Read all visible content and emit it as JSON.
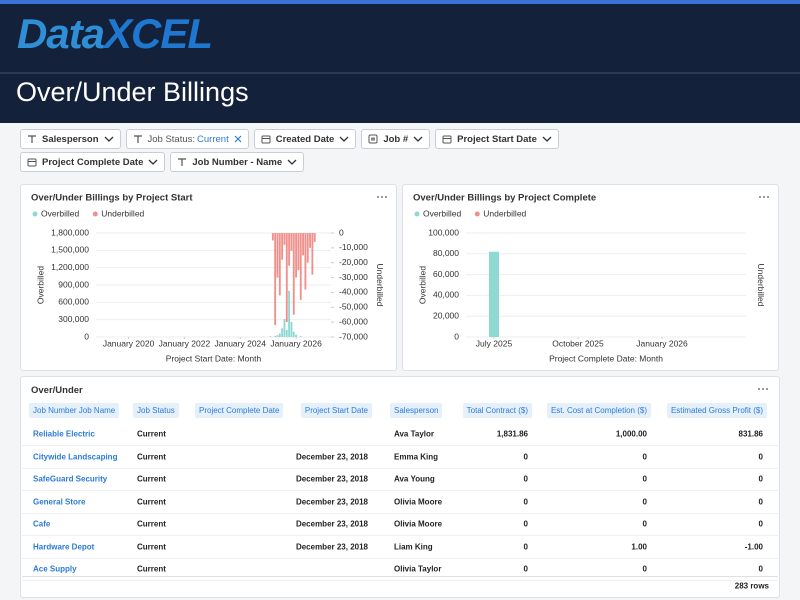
{
  "header": {
    "logo_data": "Data",
    "logo_xcel": "XCEL",
    "title": "Over/Under Billings"
  },
  "filters": [
    {
      "icon": "text",
      "label": "Salesperson"
    },
    {
      "icon": "text",
      "label": "Job Status:",
      "value": "Current"
    },
    {
      "icon": "date",
      "label": "Created Date"
    },
    {
      "icon": "number",
      "label": "Job #"
    },
    {
      "icon": "date",
      "label": "Project Start Date"
    },
    {
      "icon": "date",
      "label": "Project Complete Date"
    },
    {
      "icon": "text",
      "label": "Job Number - Name"
    }
  ],
  "chart_data": [
    {
      "type": "bar",
      "title": "Over/Under Billings by Project Start",
      "x_label": "Project Start Date: Month",
      "y_label": "Overbilled",
      "y2_label": "Underbilled",
      "x": [
        "2024-11",
        "2024-12",
        "2025-01",
        "2025-02",
        "2025-03",
        "2025-04",
        "2025-05",
        "2025-06",
        "2025-07",
        "2025-08",
        "2025-09",
        "2025-10",
        "2025-11",
        "2025-12",
        "2026-01",
        "2026-02",
        "2026-03",
        "2026-04",
        "2026-05",
        "2026-06",
        "2026-07",
        "2026-08",
        "2026-09",
        "2026-10"
      ],
      "xlim": [
        "2018-11",
        "2027-04"
      ],
      "xticks": [
        {
          "value": "2020-01",
          "label": "January 2020"
        },
        {
          "value": "2022-01",
          "label": "January 2022"
        },
        {
          "value": "2024-01",
          "label": "January 2024"
        },
        {
          "value": "2026-01",
          "label": "January 2026"
        }
      ],
      "ylim": [
        0,
        1800000
      ],
      "yticks": [
        0,
        {
          "value": 300000,
          "label": "300,000"
        },
        {
          "value": 600000,
          "label": "600,000"
        },
        {
          "value": 900000,
          "label": "900,000"
        },
        {
          "value": 1200000,
          "label": "1,200,000"
        },
        {
          "value": 1500000,
          "label": "1,500,000"
        },
        {
          "value": 1800000,
          "label": "1,800,000"
        }
      ],
      "y2lim": [
        -70000,
        0
      ],
      "y2ticks": [
        0,
        {
          "value": -10000,
          "label": "-10,000"
        },
        {
          "value": -20000,
          "label": "-20,000"
        },
        {
          "value": -30000,
          "label": "-30,000"
        },
        {
          "value": -40000,
          "label": "-40,000"
        },
        {
          "value": -50000,
          "label": "-50,000"
        },
        {
          "value": -60000,
          "label": "-60,000"
        },
        {
          "value": -70000,
          "label": "-70,000"
        }
      ],
      "series": [
        {
          "name": "Overbilled",
          "color": "#8fd9d3",
          "values": [
            5000,
            0,
            0,
            12000,
            0,
            20000,
            30000,
            60000,
            150000,
            310000,
            120000,
            800000,
            260000,
            90000,
            40000,
            0,
            15000,
            0,
            0,
            0,
            0,
            0,
            0,
            0
          ]
        },
        {
          "name": "Underbilled",
          "color": "#f0908c",
          "axis": "y2",
          "values": [
            0,
            0,
            0,
            0,
            -5000,
            -62000,
            -30000,
            -42000,
            -18000,
            -8000,
            -60000,
            -22000,
            -12000,
            -55000,
            -30000,
            -25000,
            -45000,
            -15000,
            -38000,
            -20000,
            -10000,
            -28000,
            -6000,
            0
          ]
        }
      ],
      "legend": "top-left",
      "grid": true
    },
    {
      "type": "bar",
      "title": "Over/Under Billings by Project Complete",
      "x_label": "Project Complete Date: Month",
      "y_label": "Overbilled",
      "y2_label": "Underbilled",
      "x": [
        "2025-07"
      ],
      "xlim": [
        "2025-06",
        "2026-04"
      ],
      "xticks": [
        {
          "value": "2025-07",
          "label": "July 2025"
        },
        {
          "value": "2025-10",
          "label": "October 2025"
        },
        {
          "value": "2026-01",
          "label": "January 2026"
        }
      ],
      "ylim": [
        0,
        100000
      ],
      "yticks": [
        0,
        {
          "value": 20000,
          "label": "20,000"
        },
        {
          "value": 40000,
          "label": "40,000"
        },
        {
          "value": 60000,
          "label": "60,000"
        },
        {
          "value": 80000,
          "label": "80,000"
        },
        {
          "value": 100000,
          "label": "100,000"
        }
      ],
      "series": [
        {
          "name": "Overbilled",
          "color": "#8fd9d3",
          "values": [
            82000
          ]
        },
        {
          "name": "Underbilled",
          "color": "#f0908c",
          "axis": "y2",
          "values": [
            null
          ]
        }
      ],
      "legend": "top-left",
      "grid": true
    }
  ],
  "table": {
    "title": "Over/Under",
    "columns": [
      "Job Number Job Name",
      "Job Status",
      "Project Complete Date",
      "Project Start Date",
      "Salesperson",
      "Total Contract ($)",
      "Est. Cost at Completion ($)",
      "Estimated Gross Profit ($)"
    ],
    "rows": [
      [
        "Reliable Electric",
        "Current",
        null,
        null,
        "Ava Taylor",
        "1,831.86",
        "1,000.00",
        "831.86"
      ],
      [
        "Citywide Landscaping",
        "Current",
        null,
        "December 23, 2018",
        "Emma King",
        "0",
        "0",
        "0"
      ],
      [
        "SafeGuard Security",
        "Current",
        null,
        "December 23, 2018",
        "Ava Young",
        "0",
        "0",
        "0"
      ],
      [
        "General Store",
        "Current",
        null,
        "December 23, 2018",
        "Olivia Moore",
        "0",
        "0",
        "0"
      ],
      [
        "Cafe",
        "Current",
        null,
        "December 23, 2018",
        "Olivia Moore",
        "0",
        "0",
        "0"
      ],
      [
        "Hardware Depot",
        "Current",
        null,
        "December 23, 2018",
        "Liam King",
        "0",
        "1.00",
        "-1.00"
      ],
      [
        "Ace Supply",
        "Current",
        null,
        null,
        "Olivia Taylor",
        "0",
        "0",
        "0"
      ]
    ],
    "footer": "283 rows"
  }
}
